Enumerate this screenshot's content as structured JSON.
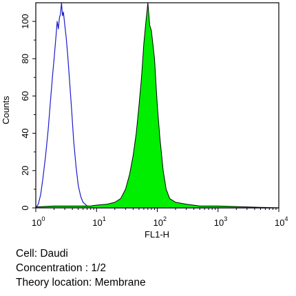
{
  "chart_data": {
    "type": "area",
    "title": "",
    "xlabel": "FL1-H",
    "ylabel": "Counts",
    "x_scale": "log",
    "xlim": [
      1,
      10000
    ],
    "ylim": [
      0,
      110
    ],
    "x_ticks": [
      {
        "base": "10",
        "exp": "0",
        "value": 1
      },
      {
        "base": "10",
        "exp": "1",
        "value": 10
      },
      {
        "base": "10",
        "exp": "2",
        "value": 100
      },
      {
        "base": "10",
        "exp": "3",
        "value": 1000
      },
      {
        "base": "10",
        "exp": "4",
        "value": 10000
      }
    ],
    "y_ticks": [
      {
        "label": "0",
        "value": 0
      },
      {
        "label": "20",
        "value": 20
      },
      {
        "label": "40",
        "value": 40
      },
      {
        "label": "60",
        "value": 60
      },
      {
        "label": "80",
        "value": 80
      },
      {
        "label": "100",
        "value": 100
      }
    ],
    "grid": false,
    "series": [
      {
        "style": "outline",
        "color": "#1a1acc",
        "points": [
          [
            1.0,
            0
          ],
          [
            1.1,
            2
          ],
          [
            1.2,
            7
          ],
          [
            1.3,
            15
          ],
          [
            1.45,
            28
          ],
          [
            1.6,
            42
          ],
          [
            1.75,
            58
          ],
          [
            1.9,
            72
          ],
          [
            2.0,
            80
          ],
          [
            2.15,
            92
          ],
          [
            2.25,
            100
          ],
          [
            2.35,
            96
          ],
          [
            2.45,
            102
          ],
          [
            2.55,
            104
          ],
          [
            2.65,
            110
          ],
          [
            2.75,
            103
          ],
          [
            2.85,
            105
          ],
          [
            3.0,
            98
          ],
          [
            3.15,
            92
          ],
          [
            3.35,
            82
          ],
          [
            3.6,
            68
          ],
          [
            3.9,
            52
          ],
          [
            4.2,
            36
          ],
          [
            4.6,
            22
          ],
          [
            5.0,
            12
          ],
          [
            5.5,
            6
          ],
          [
            6.0,
            3
          ],
          [
            6.5,
            2
          ],
          [
            7.0,
            1
          ],
          [
            8.0,
            0.5
          ],
          [
            10,
            0
          ],
          [
            100,
            0
          ],
          [
            10000,
            0
          ]
        ]
      },
      {
        "style": "filled",
        "color": "#00ee00",
        "points": [
          [
            1.0,
            0.5
          ],
          [
            2,
            1
          ],
          [
            5,
            1
          ],
          [
            8,
            1
          ],
          [
            10,
            1.5
          ],
          [
            15,
            2
          ],
          [
            20,
            3
          ],
          [
            25,
            5
          ],
          [
            30,
            10
          ],
          [
            35,
            18
          ],
          [
            40,
            28
          ],
          [
            45,
            40
          ],
          [
            50,
            55
          ],
          [
            55,
            70
          ],
          [
            60,
            88
          ],
          [
            65,
            100
          ],
          [
            70,
            110
          ],
          [
            75,
            98
          ],
          [
            80,
            95
          ],
          [
            90,
            80
          ],
          [
            100,
            55
          ],
          [
            110,
            38
          ],
          [
            125,
            20
          ],
          [
            140,
            10
          ],
          [
            160,
            5
          ],
          [
            200,
            3
          ],
          [
            300,
            2
          ],
          [
            500,
            1
          ],
          [
            1000,
            1
          ],
          [
            3000,
            0.5
          ],
          [
            10000,
            0
          ]
        ]
      }
    ]
  },
  "caption": {
    "line1": "Cell: Daudi",
    "line2": "Concentration : 1/2",
    "line3": "Theory location: Membrane"
  }
}
